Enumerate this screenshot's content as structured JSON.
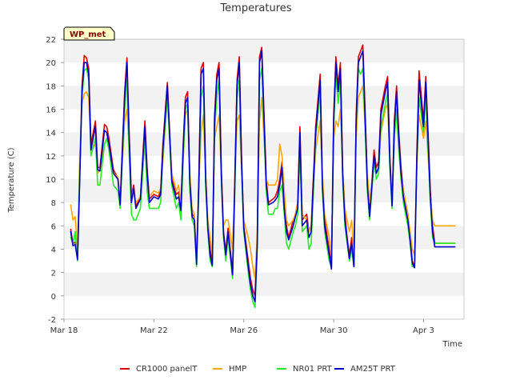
{
  "chart_data": {
    "type": "line",
    "title": "Temperatures",
    "badge": "WP_met",
    "xlabel": "Time",
    "ylabel": "Temperature (C)",
    "ylim": [
      -2,
      22
    ],
    "yticks": [
      -2,
      0,
      2,
      4,
      6,
      8,
      10,
      12,
      14,
      16,
      18,
      20,
      22
    ],
    "ytick_labels": [
      "-2",
      "0",
      "2",
      "4",
      "6",
      "8",
      "10",
      "12",
      "14",
      "16",
      "18",
      "20",
      "22"
    ],
    "xlim": [
      0,
      17.8
    ],
    "xticks": [
      0,
      4,
      8,
      12,
      16
    ],
    "xtick_labels": [
      "Mar 18",
      "Mar 22",
      "Mar 26",
      "Mar 30",
      "Apr 3"
    ],
    "grid": "horizontal bands",
    "legend_position": "bottom",
    "series": [
      {
        "name": "CR1000 panelT",
        "color": "#dd0000",
        "x": [
          0.3,
          0.4,
          0.5,
          0.6,
          0.7,
          0.8,
          0.9,
          1.0,
          1.1,
          1.2,
          1.4,
          1.5,
          1.6,
          1.8,
          1.9,
          2.0,
          2.2,
          2.4,
          2.5,
          2.7,
          2.8,
          2.9,
          3.0,
          3.1,
          3.2,
          3.4,
          3.6,
          3.7,
          3.8,
          4.0,
          4.2,
          4.3,
          4.4,
          4.6,
          4.8,
          5.0,
          5.1,
          5.2,
          5.3,
          5.4,
          5.5,
          5.6,
          5.7,
          5.8,
          5.9,
          6.0,
          6.1,
          6.2,
          6.3,
          6.4,
          6.5,
          6.6,
          6.7,
          6.8,
          6.9,
          7.0,
          7.1,
          7.2,
          7.3,
          7.5,
          7.6,
          7.7,
          7.8,
          7.9,
          8.0,
          8.2,
          8.3,
          8.4,
          8.5,
          8.6,
          8.7,
          8.8,
          9.0,
          9.1,
          9.3,
          9.4,
          9.5,
          9.6,
          9.7,
          9.8,
          9.9,
          10.0,
          10.2,
          10.3,
          10.4,
          10.5,
          10.6,
          10.8,
          10.9,
          11.0,
          11.2,
          11.4,
          11.5,
          11.6,
          11.8,
          11.9,
          12.0,
          12.1,
          12.2,
          12.3,
          12.4,
          12.5,
          12.6,
          12.7,
          12.8,
          12.9,
          13.0,
          13.1,
          13.2,
          13.3,
          13.5,
          13.6,
          13.8,
          13.9,
          14.0,
          14.1,
          14.2,
          14.3,
          14.4,
          14.5,
          14.6,
          14.7,
          14.8,
          14.9,
          15.0,
          15.1,
          15.2,
          15.3,
          15.4,
          15.5,
          15.6,
          15.7,
          15.8,
          16.0,
          16.1,
          16.2,
          16.3,
          16.4,
          16.5,
          16.6,
          16.8,
          16.9,
          17.0,
          17.1,
          17.2,
          17.3,
          17.4
        ],
        "y": [
          5.7,
          4.5,
          4.6,
          3.3,
          10.5,
          18.0,
          20.6,
          20.4,
          19.5,
          13.0,
          15.0,
          11.0,
          11.0,
          14.7,
          14.5,
          13.5,
          10.8,
          10.1,
          8.0,
          17.5,
          20.4,
          13.8,
          8.5,
          9.5,
          7.7,
          8.4,
          15.0,
          11.0,
          8.3,
          8.7,
          8.5,
          9.0,
          13.0,
          18.3,
          10.0,
          8.7,
          8.9,
          7.5,
          12.8,
          17.0,
          17.5,
          10.0,
          7.0,
          6.8,
          2.8,
          10.0,
          19.5,
          20.0,
          10.5,
          6.0,
          4.0,
          2.8,
          15.5,
          19.0,
          20.0,
          11.0,
          5.5,
          3.8,
          5.8,
          2.0,
          10.0,
          18.5,
          20.5,
          12.0,
          6.0,
          3.0,
          1.5,
          0.5,
          0.0,
          5.0,
          20.5,
          21.3,
          10.0,
          8.0,
          8.3,
          8.5,
          9.0,
          10.0,
          11.5,
          8.0,
          6.0,
          5.0,
          6.5,
          7.0,
          8.0,
          14.5,
          6.5,
          7.0,
          5.5,
          6.0,
          14.5,
          19.0,
          10.0,
          6.5,
          4.0,
          2.5,
          15.5,
          20.5,
          18.0,
          20.0,
          11.0,
          7.0,
          5.0,
          3.5,
          5.0,
          2.5,
          15.5,
          20.5,
          21.0,
          21.5,
          10.0,
          7.0,
          12.5,
          11.0,
          11.5,
          16.0,
          17.0,
          18.0,
          18.8,
          12.0,
          7.8,
          15.0,
          18.0,
          14.0,
          11.0,
          9.0,
          8.0,
          7.0,
          5.0,
          3.0,
          2.5,
          12.0,
          19.3,
          15.0,
          18.8,
          14.0,
          9.0,
          6.0,
          4.5,
          4.5,
          4.5,
          4.5,
          4.5,
          4.5,
          4.5,
          4.5,
          4.5
        ]
      },
      {
        "name": "HMP",
        "color": "#ffa500",
        "x": [
          0.3,
          0.4,
          0.5,
          0.6,
          0.7,
          0.8,
          0.9,
          1.0,
          1.1,
          1.2,
          1.4,
          1.5,
          1.6,
          1.8,
          1.9,
          2.0,
          2.2,
          2.4,
          2.5,
          2.7,
          2.8,
          2.9,
          3.0,
          3.1,
          3.2,
          3.4,
          3.6,
          3.7,
          3.8,
          4.0,
          4.2,
          4.3,
          4.4,
          4.6,
          4.8,
          5.0,
          5.1,
          5.2,
          5.3,
          5.4,
          5.5,
          5.6,
          5.7,
          5.8,
          5.9,
          6.0,
          6.1,
          6.2,
          6.3,
          6.4,
          6.5,
          6.6,
          6.7,
          6.8,
          6.9,
          7.0,
          7.1,
          7.2,
          7.3,
          7.5,
          7.6,
          7.7,
          7.8,
          7.9,
          8.0,
          8.2,
          8.3,
          8.4,
          8.5,
          8.6,
          8.7,
          8.8,
          9.0,
          9.1,
          9.3,
          9.4,
          9.5,
          9.6,
          9.7,
          9.8,
          9.9,
          10.0,
          10.2,
          10.3,
          10.4,
          10.5,
          10.6,
          10.8,
          10.9,
          11.0,
          11.2,
          11.4,
          11.5,
          11.6,
          11.8,
          11.9,
          12.0,
          12.1,
          12.2,
          12.3,
          12.4,
          12.5,
          12.6,
          12.7,
          12.8,
          12.9,
          13.0,
          13.1,
          13.2,
          13.3,
          13.5,
          13.6,
          13.8,
          13.9,
          14.0,
          14.1,
          14.2,
          14.3,
          14.4,
          14.5,
          14.6,
          14.7,
          14.8,
          14.9,
          15.0,
          15.1,
          15.2,
          15.3,
          15.4,
          15.5,
          15.6,
          15.7,
          15.8,
          16.0,
          16.1,
          16.2,
          16.3,
          16.4,
          16.5,
          16.6,
          16.8,
          16.9,
          17.0,
          17.1,
          17.2,
          17.3,
          17.4
        ],
        "y": [
          7.8,
          6.5,
          6.8,
          4.0,
          12.0,
          16.5,
          17.3,
          17.5,
          17.0,
          12.5,
          13.0,
          10.5,
          10.8,
          13.0,
          13.5,
          12.5,
          10.5,
          10.2,
          8.0,
          15.0,
          16.0,
          12.5,
          8.5,
          9.2,
          8.0,
          8.5,
          13.0,
          10.0,
          8.5,
          9.0,
          8.8,
          9.2,
          11.5,
          17.0,
          10.5,
          9.0,
          9.5,
          8.0,
          11.5,
          15.5,
          16.0,
          10.5,
          7.5,
          7.0,
          3.5,
          9.5,
          14.0,
          15.5,
          10.5,
          6.5,
          5.0,
          3.5,
          13.5,
          14.5,
          15.5,
          10.5,
          6.0,
          6.5,
          6.5,
          4.0,
          10.0,
          15.0,
          15.5,
          11.0,
          6.5,
          5.0,
          4.0,
          2.5,
          1.5,
          5.5,
          15.0,
          17.0,
          10.0,
          9.5,
          9.5,
          9.5,
          10.0,
          13.0,
          12.0,
          9.0,
          6.5,
          6.0,
          6.5,
          7.0,
          8.0,
          12.0,
          7.0,
          6.5,
          5.5,
          6.0,
          12.5,
          15.0,
          10.5,
          7.0,
          5.0,
          3.5,
          13.5,
          15.0,
          14.5,
          16.0,
          11.0,
          7.5,
          6.5,
          5.5,
          6.5,
          3.5,
          13.5,
          17.0,
          17.5,
          18.0,
          10.5,
          8.0,
          11.5,
          10.5,
          11.0,
          14.0,
          15.0,
          16.0,
          16.5,
          11.5,
          8.0,
          13.5,
          16.0,
          13.0,
          10.5,
          9.0,
          8.0,
          7.0,
          5.5,
          4.0,
          3.5,
          11.0,
          15.5,
          13.5,
          15.0,
          12.0,
          8.5,
          6.5,
          6.0,
          6.0,
          6.0,
          6.0,
          6.0,
          6.0,
          6.0,
          6.0,
          6.0
        ]
      },
      {
        "name": "NR01 PRT",
        "color": "#22ee22",
        "x": [
          0.3,
          0.4,
          0.5,
          0.6,
          0.7,
          0.8,
          0.9,
          1.0,
          1.1,
          1.2,
          1.4,
          1.5,
          1.6,
          1.8,
          1.9,
          2.0,
          2.2,
          2.4,
          2.5,
          2.7,
          2.8,
          2.9,
          3.0,
          3.1,
          3.2,
          3.4,
          3.6,
          3.7,
          3.8,
          4.0,
          4.2,
          4.3,
          4.4,
          4.6,
          4.8,
          5.0,
          5.1,
          5.2,
          5.3,
          5.4,
          5.5,
          5.6,
          5.7,
          5.8,
          5.9,
          6.0,
          6.1,
          6.2,
          6.3,
          6.4,
          6.5,
          6.6,
          6.7,
          6.8,
          6.9,
          7.0,
          7.1,
          7.2,
          7.3,
          7.5,
          7.6,
          7.7,
          7.8,
          7.9,
          8.0,
          8.2,
          8.3,
          8.4,
          8.5,
          8.6,
          8.7,
          8.8,
          9.0,
          9.1,
          9.3,
          9.4,
          9.5,
          9.6,
          9.7,
          9.8,
          9.9,
          10.0,
          10.2,
          10.3,
          10.4,
          10.5,
          10.6,
          10.8,
          10.9,
          11.0,
          11.2,
          11.4,
          11.5,
          11.6,
          11.8,
          11.9,
          12.0,
          12.1,
          12.2,
          12.3,
          12.4,
          12.5,
          12.6,
          12.7,
          12.8,
          12.9,
          13.0,
          13.1,
          13.2,
          13.3,
          13.5,
          13.6,
          13.8,
          13.9,
          14.0,
          14.1,
          14.2,
          14.3,
          14.4,
          14.5,
          14.6,
          14.7,
          14.8,
          14.9,
          15.0,
          15.1,
          15.2,
          15.3,
          15.4,
          15.5,
          15.6,
          15.7,
          15.8,
          16.0,
          16.1,
          16.2,
          16.3,
          16.4,
          16.5,
          16.6,
          16.8,
          16.9,
          17.0,
          17.1,
          17.2,
          17.3,
          17.4
        ],
        "y": [
          5.0,
          4.5,
          5.5,
          3.0,
          11.0,
          17.0,
          19.3,
          19.5,
          18.5,
          12.0,
          13.5,
          9.5,
          9.5,
          13.0,
          13.5,
          12.5,
          9.5,
          9.0,
          7.5,
          16.0,
          18.5,
          12.0,
          7.0,
          6.5,
          6.5,
          7.5,
          13.5,
          9.0,
          7.5,
          7.5,
          7.5,
          8.0,
          12.0,
          17.0,
          9.5,
          7.5,
          8.0,
          6.5,
          11.5,
          16.0,
          16.5,
          9.0,
          6.5,
          6.0,
          2.5,
          9.0,
          17.0,
          18.0,
          9.5,
          5.5,
          3.0,
          2.5,
          14.0,
          17.0,
          18.5,
          10.0,
          5.0,
          3.0,
          5.0,
          1.5,
          9.0,
          17.0,
          18.5,
          11.0,
          5.5,
          2.0,
          0.5,
          -0.5,
          -1.0,
          4.0,
          18.5,
          19.5,
          9.0,
          7.0,
          7.0,
          7.5,
          7.5,
          9.0,
          9.5,
          7.0,
          4.5,
          4.0,
          5.5,
          6.0,
          7.0,
          12.5,
          5.5,
          6.0,
          4.0,
          4.5,
          13.5,
          17.5,
          9.0,
          5.5,
          3.0,
          2.5,
          14.5,
          19.0,
          16.5,
          18.5,
          10.0,
          6.0,
          4.5,
          3.0,
          4.0,
          2.5,
          14.5,
          19.5,
          19.0,
          19.5,
          9.0,
          6.5,
          11.5,
          10.0,
          10.5,
          14.5,
          15.5,
          16.5,
          17.5,
          11.0,
          7.5,
          13.5,
          16.0,
          12.5,
          10.0,
          8.0,
          7.0,
          6.0,
          4.5,
          2.5,
          2.5,
          11.0,
          17.0,
          14.0,
          17.0,
          12.5,
          8.0,
          5.0,
          4.5,
          4.5,
          4.5,
          4.5,
          4.5,
          4.5,
          4.5,
          4.5,
          4.5
        ]
      },
      {
        "name": "AM25T PRT",
        "color": "#0000cc",
        "x": [
          0.3,
          0.4,
          0.5,
          0.6,
          0.7,
          0.8,
          0.9,
          1.0,
          1.1,
          1.2,
          1.4,
          1.5,
          1.6,
          1.8,
          1.9,
          2.0,
          2.2,
          2.4,
          2.5,
          2.7,
          2.8,
          2.9,
          3.0,
          3.1,
          3.2,
          3.4,
          3.6,
          3.7,
          3.8,
          4.0,
          4.2,
          4.3,
          4.4,
          4.6,
          4.8,
          5.0,
          5.1,
          5.2,
          5.3,
          5.4,
          5.5,
          5.6,
          5.7,
          5.8,
          5.9,
          6.0,
          6.1,
          6.2,
          6.3,
          6.4,
          6.5,
          6.6,
          6.7,
          6.8,
          6.9,
          7.0,
          7.1,
          7.2,
          7.3,
          7.5,
          7.6,
          7.7,
          7.8,
          7.9,
          8.0,
          8.2,
          8.3,
          8.4,
          8.5,
          8.6,
          8.7,
          8.8,
          9.0,
          9.1,
          9.3,
          9.4,
          9.5,
          9.6,
          9.7,
          9.8,
          9.9,
          10.0,
          10.2,
          10.3,
          10.4,
          10.5,
          10.6,
          10.8,
          10.9,
          11.0,
          11.2,
          11.4,
          11.5,
          11.6,
          11.8,
          11.9,
          12.0,
          12.1,
          12.2,
          12.3,
          12.4,
          12.5,
          12.6,
          12.7,
          12.8,
          12.9,
          13.0,
          13.1,
          13.2,
          13.3,
          13.5,
          13.6,
          13.8,
          13.9,
          14.0,
          14.1,
          14.2,
          14.3,
          14.4,
          14.5,
          14.6,
          14.7,
          14.8,
          14.9,
          15.0,
          15.1,
          15.2,
          15.3,
          15.4,
          15.5,
          15.6,
          15.7,
          15.8,
          16.0,
          16.1,
          16.2,
          16.3,
          16.4,
          16.5,
          16.6,
          16.8,
          16.9,
          17.0,
          17.1,
          17.2,
          17.3,
          17.4
        ],
        "y": [
          5.5,
          4.3,
          4.4,
          3.1,
          10.0,
          17.5,
          20.0,
          20.0,
          19.0,
          12.5,
          14.5,
          10.8,
          10.7,
          14.2,
          14.0,
          13.0,
          10.5,
          10.0,
          7.8,
          17.0,
          20.0,
          13.5,
          8.0,
          9.2,
          7.5,
          8.3,
          14.5,
          10.5,
          8.0,
          8.5,
          8.3,
          8.7,
          12.5,
          18.0,
          9.8,
          8.3,
          8.5,
          7.3,
          12.5,
          16.5,
          17.0,
          9.8,
          6.8,
          6.5,
          2.7,
          9.5,
          19.0,
          19.5,
          10.2,
          5.8,
          3.5,
          2.6,
          15.0,
          18.5,
          19.5,
          10.5,
          5.3,
          3.5,
          5.5,
          1.8,
          9.5,
          18.0,
          20.0,
          11.5,
          5.8,
          2.5,
          1.0,
          0.0,
          -0.5,
          4.5,
          20.0,
          21.0,
          9.5,
          7.8,
          8.0,
          8.2,
          8.5,
          9.5,
          11.0,
          7.5,
          5.5,
          4.8,
          6.0,
          6.8,
          7.5,
          14.0,
          6.0,
          6.5,
          5.0,
          5.5,
          14.0,
          18.5,
          9.5,
          6.0,
          3.5,
          2.3,
          15.0,
          20.0,
          17.5,
          19.5,
          10.5,
          6.5,
          4.8,
          3.2,
          4.5,
          2.5,
          15.0,
          20.0,
          20.5,
          21.0,
          9.5,
          6.8,
          12.0,
          10.5,
          11.0,
          15.5,
          16.5,
          17.5,
          18.3,
          11.5,
          7.7,
          14.5,
          17.5,
          13.5,
          10.5,
          8.5,
          7.5,
          6.5,
          4.8,
          2.8,
          2.4,
          11.5,
          18.5,
          14.5,
          18.3,
          13.5,
          8.5,
          5.5,
          4.2,
          4.2,
          4.2,
          4.2,
          4.2,
          4.2,
          4.2,
          4.2,
          4.2
        ]
      }
    ]
  }
}
